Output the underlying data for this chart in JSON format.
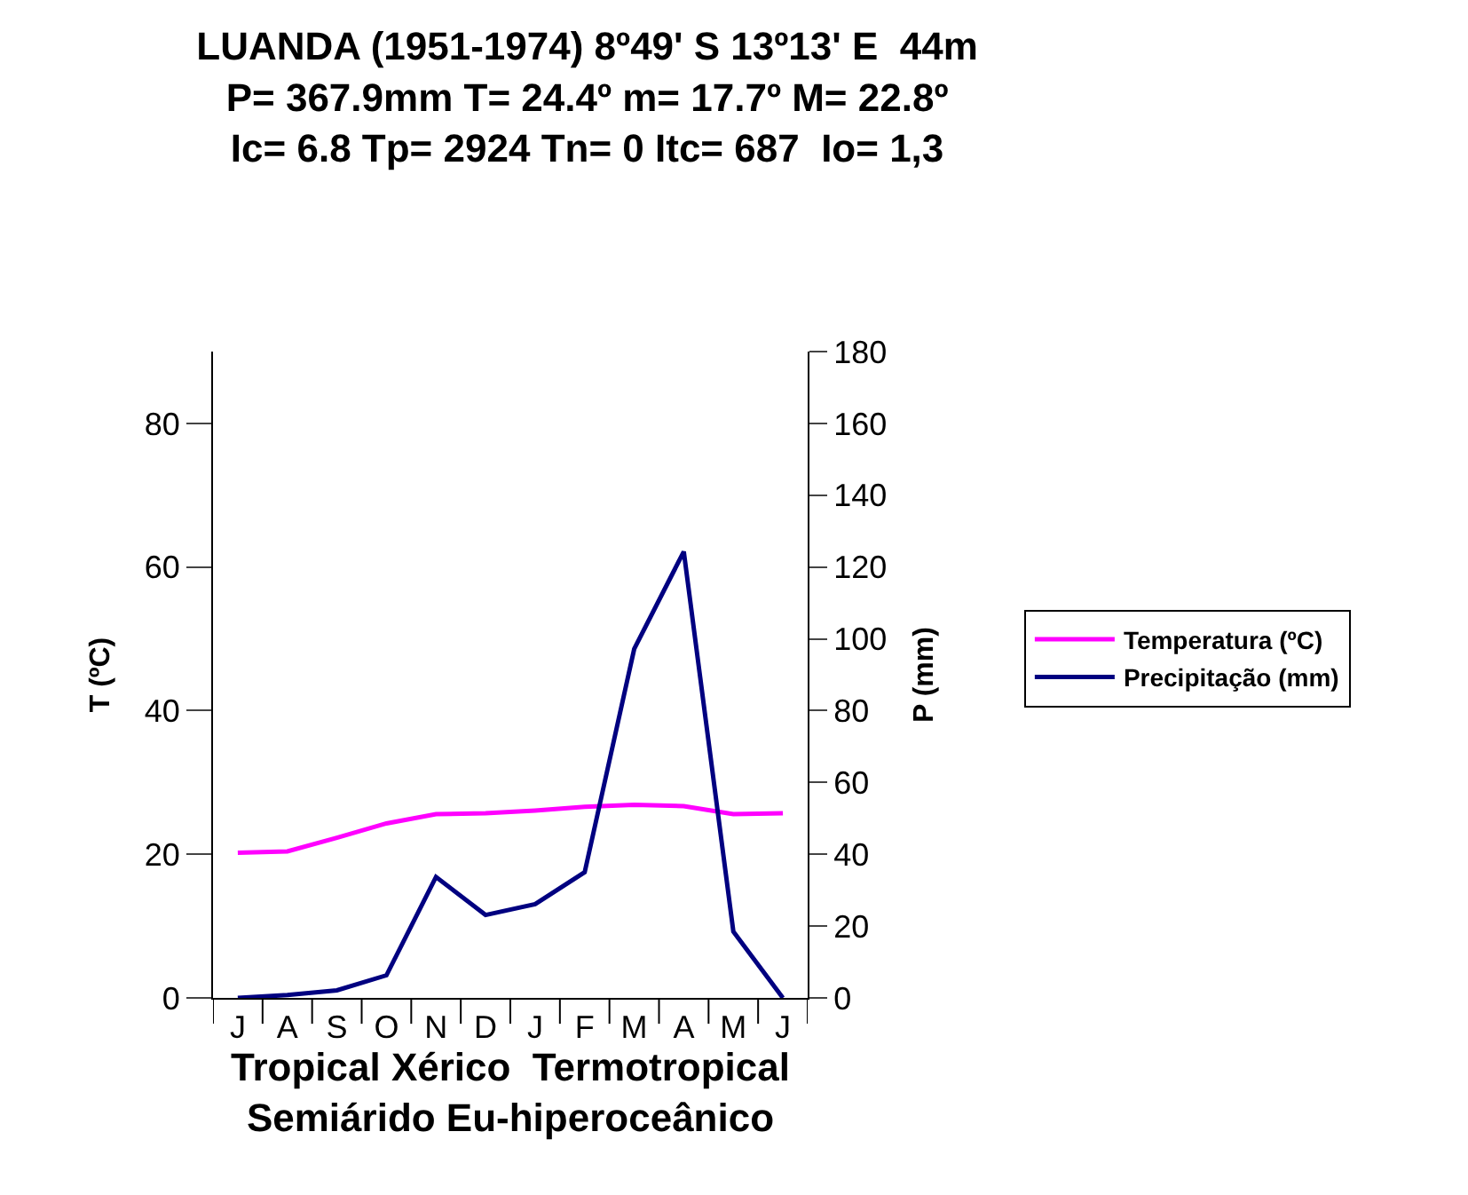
{
  "chart_data": {
    "type": "line",
    "title": "LUANDA (1951-1974) 8º49' S 13º13' E  44m\nP= 367.9mm T= 24.4º m= 17.7º M= 22.8º\nIc= 6.8 Tp= 2924 Tn= 0 Itc= 687  Io= 1,3",
    "categories": [
      "J",
      "A",
      "S",
      "O",
      "N",
      "D",
      "J",
      "F",
      "M",
      "A",
      "M",
      "J"
    ],
    "series": [
      {
        "name": "Temperatura (ºC)",
        "color": "#ff00ff",
        "values": [
          20.2,
          20.4,
          22.3,
          24.3,
          25.6,
          25.7,
          26.1,
          26.6,
          26.9,
          26.7,
          25.6,
          25.7
        ]
      },
      {
        "name": "Precipitação (mm)",
        "color": "#000080",
        "axis": "y2",
        "values": [
          0,
          0.8,
          2.1,
          6.3,
          33.7,
          23.1,
          26.1,
          35,
          97.2,
          124.3,
          18.5,
          0
        ]
      }
    ],
    "xlabel": "Tropical Xérico  Termotropical\nSemiárido Eu-hiperoceânico",
    "ylabel": "T (ºC)",
    "y2label": "P (mm)",
    "ylim": [
      0,
      90
    ],
    "yticks": [
      0,
      20,
      40,
      60,
      80
    ],
    "y2lim": [
      0,
      180
    ],
    "y2ticks": [
      0,
      20,
      40,
      60,
      80,
      100,
      120,
      140,
      160,
      180
    ],
    "legend": "right",
    "marker": "none",
    "line_style": "solid"
  }
}
